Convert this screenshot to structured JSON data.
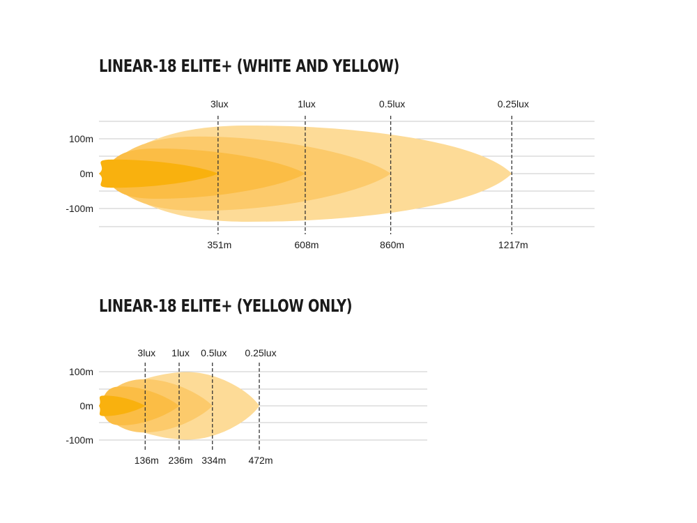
{
  "colors": {
    "zone_025lux": "#fddb97",
    "zone_05lux": "#fcca6b",
    "zone_1lux": "#fbbd45",
    "zone_3lux": "#f9b10e",
    "gridline": "#c8c8c8",
    "marker": "#333333",
    "text": "#1a1a1a"
  },
  "chart_data": [
    {
      "type": "area",
      "title": "LINEAR-18 ELITE+ (WHITE AND YELLOW)",
      "y_tick_labels": [
        "100m",
        "0m",
        "-100m"
      ],
      "ylim": [
        -150,
        150
      ],
      "xlim": [
        0,
        1400
      ],
      "grid": true,
      "series": [
        {
          "name": "3lux",
          "distance_m": 351,
          "distance_label": "351m"
        },
        {
          "name": "1lux",
          "distance_m": 608,
          "distance_label": "608m"
        },
        {
          "name": "0.5lux",
          "distance_m": 860,
          "distance_label": "860m"
        },
        {
          "name": "0.25lux",
          "distance_m": 1217,
          "distance_label": "1217m"
        }
      ]
    },
    {
      "type": "area",
      "title": "LINEAR-18 ELITE+ (YELLOW ONLY)",
      "y_tick_labels": [
        "100m",
        "0m",
        "-100m"
      ],
      "ylim": [
        -150,
        150
      ],
      "xlim": [
        0,
        930
      ],
      "grid": true,
      "series": [
        {
          "name": "3lux",
          "distance_m": 136,
          "distance_label": "136m"
        },
        {
          "name": "1lux",
          "distance_m": 236,
          "distance_label": "236m"
        },
        {
          "name": "0.5lux",
          "distance_m": 334,
          "distance_label": "334m"
        },
        {
          "name": "0.25lux",
          "distance_m": 472,
          "distance_label": "472m"
        }
      ]
    }
  ]
}
